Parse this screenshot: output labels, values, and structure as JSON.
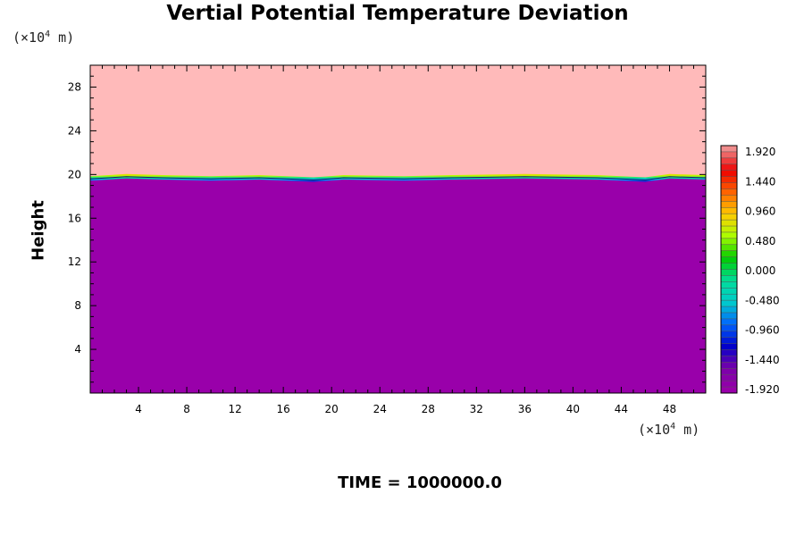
{
  "chart_data": {
    "type": "heatmap",
    "title": "Vertial Potential Temperature Deviation",
    "ylabel": "Height",
    "xlabel": "",
    "y_unit": {
      "prefix": "(×10",
      "exp": "4",
      "suffix": " m)"
    },
    "x_unit": {
      "prefix": "(×10",
      "exp": "4",
      "suffix": " m)"
    },
    "xlim": [
      0,
      51
    ],
    "ylim": [
      0,
      30
    ],
    "x_ticks": [
      4,
      8,
      12,
      16,
      20,
      24,
      28,
      32,
      36,
      40,
      44,
      48
    ],
    "y_ticks": [
      4,
      8,
      12,
      16,
      20,
      24,
      28
    ],
    "interface_height": [
      {
        "x": 0,
        "y": 19.6
      },
      {
        "x": 3,
        "y": 19.8
      },
      {
        "x": 6,
        "y": 19.7
      },
      {
        "x": 10,
        "y": 19.6
      },
      {
        "x": 14,
        "y": 19.7
      },
      {
        "x": 18.5,
        "y": 19.5
      },
      {
        "x": 21,
        "y": 19.7
      },
      {
        "x": 26,
        "y": 19.6
      },
      {
        "x": 30,
        "y": 19.7
      },
      {
        "x": 36,
        "y": 19.8
      },
      {
        "x": 42,
        "y": 19.7
      },
      {
        "x": 46,
        "y": 19.5
      },
      {
        "x": 48,
        "y": 19.8
      },
      {
        "x": 51,
        "y": 19.7
      }
    ],
    "region_values": {
      "upper": 1.92,
      "lower": -1.92
    },
    "colorbar": {
      "labels": [
        "1.920",
        "1.440",
        "0.960",
        "0.480",
        "0.000",
        "-0.480",
        "-0.960",
        "-1.440",
        "-1.920"
      ],
      "colors": [
        "#f08c8c",
        "#ee0000",
        "#ff6600",
        "#ffcc00",
        "#aaff00",
        "#00cc00",
        "#00dd99",
        "#00cccc",
        "#0066ff",
        "#0000cc",
        "#7a00aa",
        "#9900aa"
      ],
      "range": [
        -1.92,
        1.92
      ]
    },
    "time_label": "TIME = 1000000.0"
  }
}
